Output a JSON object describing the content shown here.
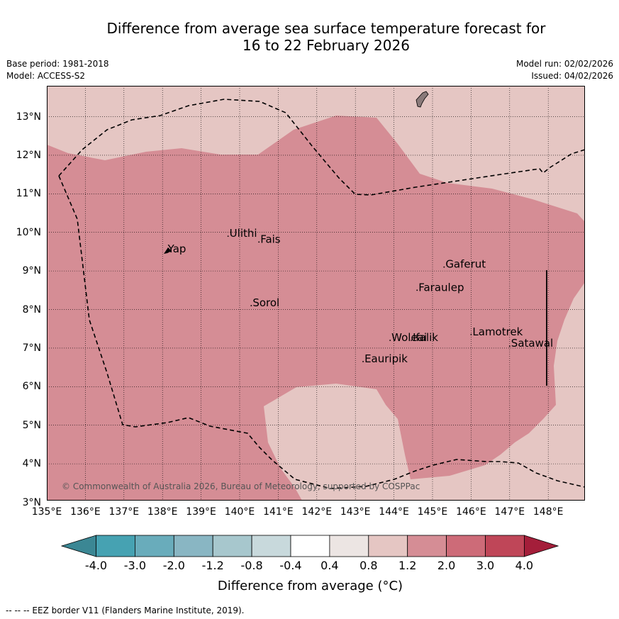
{
  "title": {
    "line1": "Difference from average sea surface temperature forecast for",
    "line2": "16 to 22 February 2026"
  },
  "meta": {
    "base_period": "Base period: 1981-2018",
    "model": "Model: ACCESS-S2",
    "model_run": "Model run: 02/02/2026",
    "issued": "Issued: 04/02/2026"
  },
  "map": {
    "copyright": "© Commonwealth of Australia 2026, Bureau of Meteorology, supported by COSPPac",
    "lat_ticks": [
      "13°N",
      "12°N",
      "11°N",
      "10°N",
      "9°N",
      "8°N",
      "7°N",
      "6°N",
      "5°N",
      "4°N",
      "3°N"
    ],
    "lon_ticks": [
      "135°E",
      "136°E",
      "137°E",
      "138°E",
      "139°E",
      "140°E",
      "141°E",
      "142°E",
      "143°E",
      "144°E",
      "145°E",
      "146°E",
      "147°E",
      "148°E"
    ],
    "places": [
      {
        "name": "Yap",
        "lon": 138.1,
        "lat": 9.5
      },
      {
        "name": "Ulithi",
        "lon": 139.7,
        "lat": 9.9
      },
      {
        "name": "Fais",
        "lon": 140.5,
        "lat": 9.75
      },
      {
        "name": "Gaferut",
        "lon": 145.3,
        "lat": 9.1
      },
      {
        "name": "Faraulep",
        "lon": 144.6,
        "lat": 8.5
      },
      {
        "name": "Sorol",
        "lon": 140.3,
        "lat": 8.1
      },
      {
        "name": "Lamotrek",
        "lon": 146.0,
        "lat": 7.35
      },
      {
        "name": "Satawal",
        "lon": 147.0,
        "lat": 7.05
      },
      {
        "name": "Woleai",
        "lon": 143.9,
        "lat": 7.2
      },
      {
        "name": "Ifalik",
        "lon": 144.45,
        "lat": 7.2
      },
      {
        "name": "Eauripik",
        "lon": 143.2,
        "lat": 6.65
      }
    ],
    "colors": {
      "anomaly_1_2_to_2_0": "#d58d95",
      "anomaly_0_8_to_1_2": "#e5c6c3",
      "land": "#8a7a7a"
    }
  },
  "colorbar": {
    "title": "Difference from average (°C)",
    "labels": [
      "-4.0",
      "-3.0",
      "-2.0",
      "-1.2",
      "-0.8",
      "-0.4",
      "0.4",
      "0.8",
      "1.2",
      "2.0",
      "3.0",
      "4.0"
    ],
    "colors": [
      "#3b8794",
      "#46a2b2",
      "#69acbb",
      "#89b6c3",
      "#a7c7cd",
      "#c8d9dc",
      "#ffffff",
      "#ece5e3",
      "#e5c6c3",
      "#d58d95",
      "#cd6b78",
      "#bf4658",
      "#a41e3a"
    ]
  },
  "footnote": "--  --  -- EEZ border V11 (Flanders Marine Institute, 2019)."
}
